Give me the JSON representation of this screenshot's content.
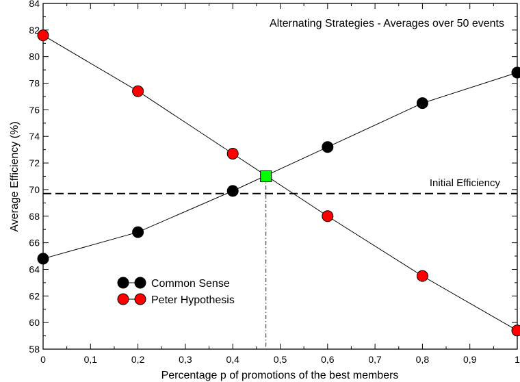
{
  "chart_data": {
    "type": "line",
    "title": "Alternating Strategies - Averages over 50 events",
    "xlabel": "Percentage p of promotions of the best members",
    "ylabel": "Average Efficiency (%)",
    "xlim": [
      0,
      1
    ],
    "ylim": [
      58,
      84
    ],
    "x_ticks": [
      "0",
      "0,1",
      "0,2",
      "0,3",
      "0,4",
      "0,5",
      "0,6",
      "0,7",
      "0,8",
      "0,9",
      "1"
    ],
    "y_ticks": [
      "58",
      "60",
      "62",
      "64",
      "66",
      "68",
      "70",
      "72",
      "74",
      "76",
      "78",
      "80",
      "82",
      "84"
    ],
    "x": [
      0,
      0.2,
      0.4,
      0.6,
      0.8,
      1.0
    ],
    "series": [
      {
        "name": "Common Sense",
        "values": [
          64.8,
          66.8,
          69.9,
          73.2,
          76.5,
          78.8
        ],
        "color": "#000000"
      },
      {
        "name": "Peter Hypothesis",
        "values": [
          81.6,
          77.4,
          72.7,
          68.0,
          63.5,
          59.4
        ],
        "color": "#ff0000"
      }
    ],
    "reference_line": {
      "label": "Initial Efficiency",
      "y": 69.7
    },
    "intersection": {
      "x": 0.47,
      "y": 71.0,
      "color": "#00ff00"
    },
    "legend_position": "lower-left",
    "grid": false
  }
}
